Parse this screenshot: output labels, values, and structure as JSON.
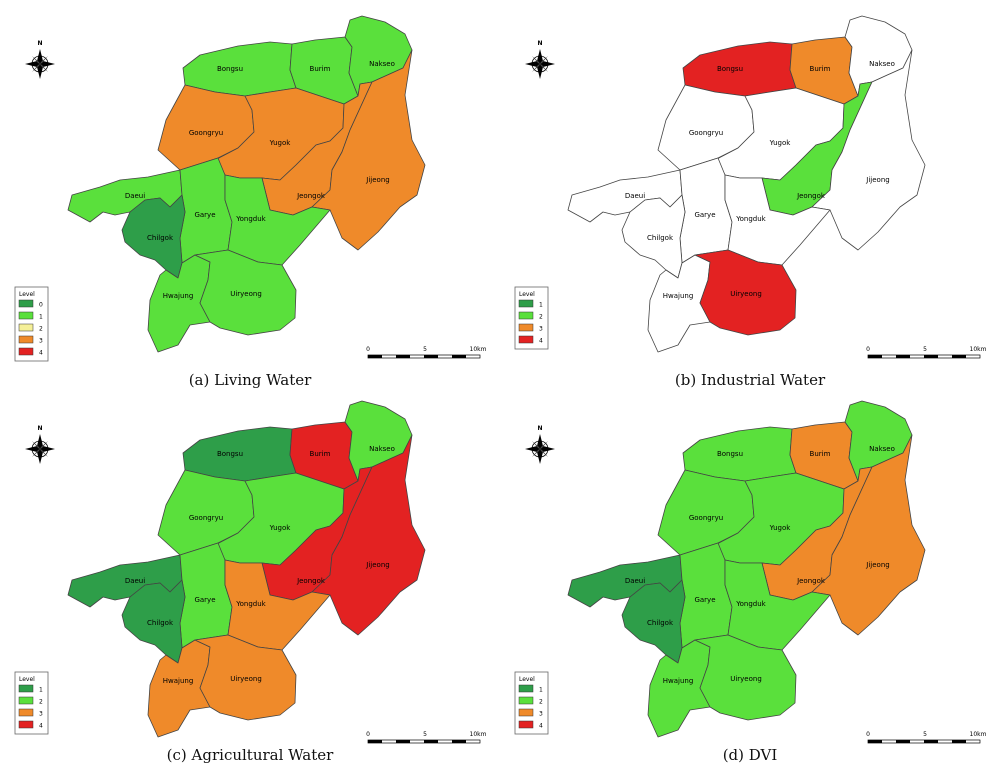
{
  "panels": [
    {
      "id": "a",
      "caption": "(a) Living Water",
      "legend": {
        "title": "Level",
        "items": [
          {
            "label": "0",
            "color": "#2e9e49"
          },
          {
            "label": "1",
            "color": "#5ae03c"
          },
          {
            "label": "2",
            "color": "#f5f098"
          },
          {
            "label": "3",
            "color": "#ef8a2a"
          },
          {
            "label": "4",
            "color": "#e32222"
          }
        ]
      },
      "districts": {
        "Bongsu": "#5ae03c",
        "Burim": "#5ae03c",
        "Nakseo": "#5ae03c",
        "Goongryu": "#ef8a2a",
        "Yugok": "#ef8a2a",
        "Jeongok": "#ef8a2a",
        "Jijeong": "#ef8a2a",
        "Daeui": "#5ae03c",
        "Garye": "#5ae03c",
        "Yongduk": "#5ae03c",
        "Chilgok": "#2e9e49",
        "Hwajung": "#5ae03c",
        "Uiryeong": "#5ae03c"
      }
    },
    {
      "id": "b",
      "caption": "(b) Industrial Water",
      "legend": {
        "title": "Level",
        "items": [
          {
            "label": "1",
            "color": "#2e9e49"
          },
          {
            "label": "2",
            "color": "#5ae03c"
          },
          {
            "label": "3",
            "color": "#ef8a2a"
          },
          {
            "label": "4",
            "color": "#e32222"
          }
        ]
      },
      "districts": {
        "Bongsu": "#e32222",
        "Burim": "#ef8a2a",
        "Nakseo": "#ffffff",
        "Goongryu": "#ffffff",
        "Yugok": "#ffffff",
        "Jeongok": "#5ae03c",
        "Jijeong": "#ffffff",
        "Daeui": "#ffffff",
        "Garye": "#ffffff",
        "Yongduk": "#ffffff",
        "Chilgok": "#ffffff",
        "Hwajung": "#ffffff",
        "Uiryeong": "#e32222"
      }
    },
    {
      "id": "c",
      "caption": "(c) Agricultural Water",
      "legend": {
        "title": "Level",
        "items": [
          {
            "label": "1",
            "color": "#2e9e49"
          },
          {
            "label": "2",
            "color": "#5ae03c"
          },
          {
            "label": "3",
            "color": "#ef8a2a"
          },
          {
            "label": "4",
            "color": "#e32222"
          }
        ]
      },
      "districts": {
        "Bongsu": "#2e9e49",
        "Burim": "#e32222",
        "Nakseo": "#5ae03c",
        "Goongryu": "#5ae03c",
        "Yugok": "#5ae03c",
        "Jeongok": "#e32222",
        "Jijeong": "#e32222",
        "Daeui": "#2e9e49",
        "Garye": "#5ae03c",
        "Yongduk": "#ef8a2a",
        "Chilgok": "#2e9e49",
        "Hwajung": "#ef8a2a",
        "Uiryeong": "#ef8a2a"
      }
    },
    {
      "id": "d",
      "caption": "(d) DVI",
      "legend": {
        "title": "Level",
        "items": [
          {
            "label": "1",
            "color": "#2e9e49"
          },
          {
            "label": "2",
            "color": "#5ae03c"
          },
          {
            "label": "3",
            "color": "#ef8a2a"
          },
          {
            "label": "4",
            "color": "#e32222"
          }
        ]
      },
      "districts": {
        "Bongsu": "#5ae03c",
        "Burim": "#ef8a2a",
        "Nakseo": "#5ae03c",
        "Goongryu": "#5ae03c",
        "Yugok": "#5ae03c",
        "Jeongok": "#ef8a2a",
        "Jijeong": "#ef8a2a",
        "Daeui": "#2e9e49",
        "Garye": "#5ae03c",
        "Yongduk": "#5ae03c",
        "Chilgok": "#2e9e49",
        "Hwajung": "#5ae03c",
        "Uiryeong": "#5ae03c"
      }
    }
  ],
  "district_names": [
    "Bongsu",
    "Burim",
    "Nakseo",
    "Goongryu",
    "Yugok",
    "Jeongok",
    "Jijeong",
    "Daeui",
    "Garye",
    "Yongduk",
    "Chilgok",
    "Hwajung",
    "Uiryeong"
  ],
  "north_label": "N",
  "scale_labels": [
    "0",
    "5",
    "10km"
  ]
}
